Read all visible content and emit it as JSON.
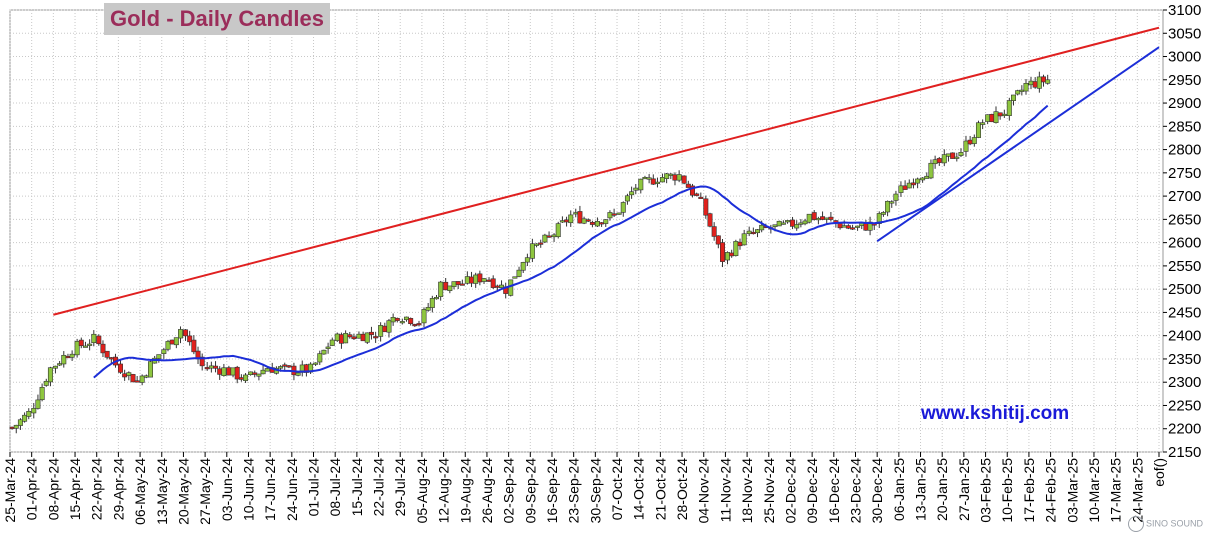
{
  "chart_data": {
    "type": "candlestick",
    "title": "Gold - Daily Candles",
    "watermark_url": "www.kshitij.com",
    "watermark_logo_text": "SINO SOUND",
    "y_ticks": [
      2150,
      2200,
      2250,
      2300,
      2350,
      2400,
      2450,
      2500,
      2550,
      2600,
      2650,
      2700,
      2750,
      2800,
      2850,
      2900,
      2950,
      3000,
      3050,
      3100
    ],
    "ylim": [
      2150,
      3100
    ],
    "x_tick_labels": [
      "25-Mar-24",
      "01-Apr-24",
      "08-Apr-24",
      "15-Apr-24",
      "22-Apr-24",
      "29-Apr-24",
      "06-May-24",
      "13-May-24",
      "20-May-24",
      "27-May-24",
      "03-Jun-24",
      "10-Jun-24",
      "17-Jun-24",
      "24-Jun-24",
      "01-Jul-24",
      "08-Jul-24",
      "15-Jul-24",
      "22-Jul-24",
      "29-Jul-24",
      "05-Aug-24",
      "12-Aug-24",
      "19-Aug-24",
      "26-Aug-24",
      "02-Sep-24",
      "09-Sep-24",
      "16-Sep-24",
      "23-Sep-24",
      "30-Sep-24",
      "07-Oct-24",
      "14-Oct-24",
      "21-Oct-24",
      "28-Oct-24",
      "04-Nov-24",
      "11-Nov-24",
      "18-Nov-24",
      "25-Nov-24",
      "02-Dec-24",
      "09-Dec-24",
      "16-Dec-24",
      "23-Dec-24",
      "30-Dec-24",
      "06-Jan-25",
      "13-Jan-25",
      "20-Jan-25",
      "27-Jan-25",
      "03-Feb-25",
      "10-Feb-25",
      "17-Feb-25",
      "24-Feb-25",
      "03-Mar-25",
      "10-Mar-25",
      "17-Mar-25",
      "24-Mar-25",
      "eof()"
    ],
    "weekly_closes": [
      2233,
      2330,
      2372,
      2392,
      2338,
      2302,
      2360,
      2415,
      2334,
      2327,
      2307,
      2332,
      2325,
      2327,
      2392,
      2400,
      2405,
      2445,
      2431,
      2508,
      2512,
      2527,
      2500,
      2580,
      2610,
      2658,
      2648,
      2658,
      2720,
      2740,
      2745,
      2685,
      2565,
      2612,
      2630,
      2636,
      2658,
      2645,
      2630,
      2640,
      2705,
      2745,
      2771,
      2798,
      2860,
      2882,
      2939,
      2950
    ],
    "trend_lines": [
      {
        "color": "#e02020",
        "from": [
          "08-Apr-24",
          2445
        ],
        "to": [
          "eof()",
          3062
        ]
      },
      {
        "color": "#1c2ed8",
        "from": [
          "30-Dec-24",
          2603
        ],
        "to": [
          "eof()",
          3020
        ]
      }
    ],
    "moving_average_color": "#1c2ed8",
    "up_candle_color": "#8ec63f",
    "down_candle_color": "#e0201c",
    "grid": true,
    "y_axis_side": "right"
  }
}
